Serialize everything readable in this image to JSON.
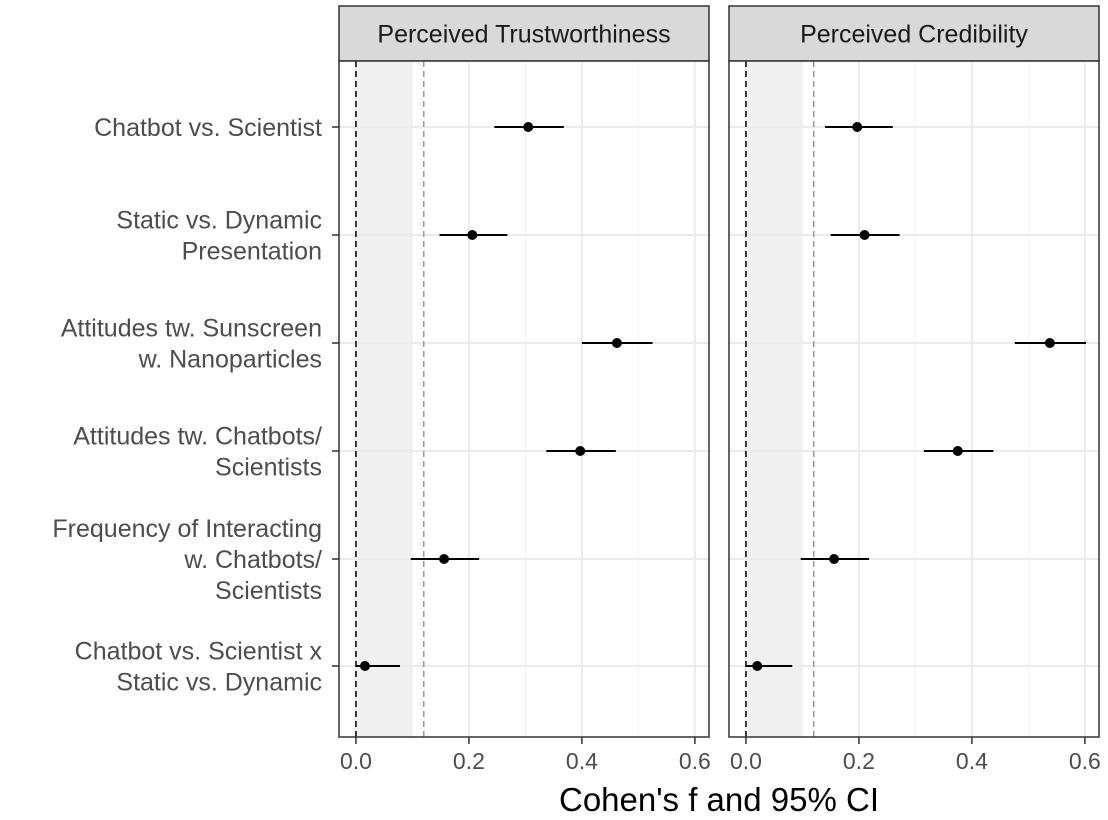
{
  "chart_data": {
    "type": "forest",
    "xlabel": "Cohen's f and 95% CI",
    "xlim": [
      -0.03,
      0.625
    ],
    "xticks": [
      0.0,
      0.2,
      0.4,
      0.6
    ],
    "xtick_labels": [
      "0.0",
      "0.2",
      "0.4",
      "0.6"
    ],
    "reference_line": 0.0,
    "threshold_line": 0.12,
    "shaded_region": [
      0.0,
      0.1
    ],
    "grid": true,
    "categories": [
      {
        "id": "chatbot-vs-scientist",
        "lines": [
          "Chatbot vs. Scientist"
        ]
      },
      {
        "id": "static-vs-dynamic",
        "lines": [
          "Static vs. Dynamic",
          "Presentation"
        ]
      },
      {
        "id": "attitudes-sunscreen",
        "lines": [
          "Attitudes tw. Sunscreen",
          "w. Nanoparticles"
        ]
      },
      {
        "id": "attitudes-chatbots",
        "lines": [
          "Attitudes tw. Chatbots/",
          "Scientists"
        ]
      },
      {
        "id": "frequency-interacting",
        "lines": [
          "Frequency of Interacting",
          "w. Chatbots/",
          "Scientists"
        ]
      },
      {
        "id": "interaction",
        "lines": [
          "Chatbot vs. Scientist x",
          "Static vs. Dynamic"
        ]
      }
    ],
    "panels": [
      {
        "title": "Perceived Trustworthiness",
        "points": [
          {
            "est": 0.305,
            "lo": 0.245,
            "hi": 0.368
          },
          {
            "est": 0.206,
            "lo": 0.148,
            "hi": 0.268
          },
          {
            "est": 0.462,
            "lo": 0.4,
            "hi": 0.525
          },
          {
            "est": 0.397,
            "lo": 0.337,
            "hi": 0.46
          },
          {
            "est": 0.156,
            "lo": 0.097,
            "hi": 0.218
          },
          {
            "est": 0.016,
            "lo": 0.0,
            "hi": 0.078
          }
        ]
      },
      {
        "title": "Perceived Credibility",
        "points": [
          {
            "est": 0.197,
            "lo": 0.14,
            "hi": 0.26
          },
          {
            "est": 0.21,
            "lo": 0.15,
            "hi": 0.272
          },
          {
            "est": 0.538,
            "lo": 0.476,
            "hi": 0.602
          },
          {
            "est": 0.375,
            "lo": 0.315,
            "hi": 0.438
          },
          {
            "est": 0.156,
            "lo": 0.097,
            "hi": 0.218
          },
          {
            "est": 0.02,
            "lo": 0.0,
            "hi": 0.082
          }
        ]
      }
    ]
  }
}
